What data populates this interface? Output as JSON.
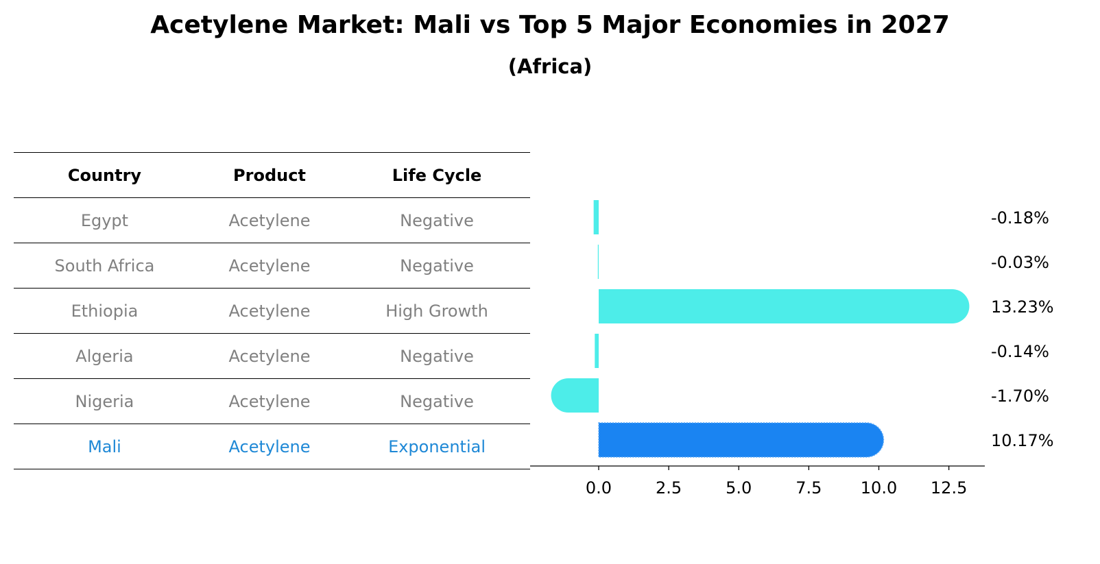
{
  "title": "Acetylene Market: Mali vs Top 5 Major Economies in 2027",
  "subtitle": "(Africa)",
  "table": {
    "headers": [
      "Country",
      "Product",
      "Life Cycle"
    ],
    "rows": [
      {
        "country": "Egypt",
        "product": "Acetylene",
        "life_cycle": "Negative"
      },
      {
        "country": "South Africa",
        "product": "Acetylene",
        "life_cycle": "Negative"
      },
      {
        "country": "Ethiopia",
        "product": "Acetylene",
        "life_cycle": "High Growth"
      },
      {
        "country": "Algeria",
        "product": "Acetylene",
        "life_cycle": "Negative"
      },
      {
        "country": "Nigeria",
        "product": "Acetylene",
        "life_cycle": "Negative"
      },
      {
        "country": "Mali",
        "product": "Acetylene",
        "life_cycle": "Exponential"
      }
    ]
  },
  "colors": {
    "bar": "#4dede9",
    "highlight_bar": "#1a84f2",
    "highlight_text": "#1e88d6",
    "muted_text": "#808080"
  },
  "chart_data": {
    "type": "bar",
    "orientation": "horizontal",
    "categories": [
      "Egypt",
      "South Africa",
      "Ethiopia",
      "Algeria",
      "Nigeria",
      "Mali"
    ],
    "values": [
      -0.18,
      -0.03,
      13.23,
      -0.14,
      -1.7,
      10.17
    ],
    "value_labels": [
      "-0.18%",
      "-0.03%",
      "13.23%",
      "-0.14%",
      "-1.70%",
      "10.17%"
    ],
    "highlight": "Mali",
    "xlim": [
      -2.5,
      14
    ],
    "xticks": [
      0.0,
      2.5,
      5.0,
      7.5,
      10.0,
      12.5
    ],
    "xtick_labels": [
      "0.0",
      "2.5",
      "5.0",
      "7.5",
      "10.0",
      "12.5"
    ],
    "title": "Acetylene Market: Mali vs Top 5 Major Economies in 2027",
    "xlabel": "",
    "ylabel": ""
  }
}
